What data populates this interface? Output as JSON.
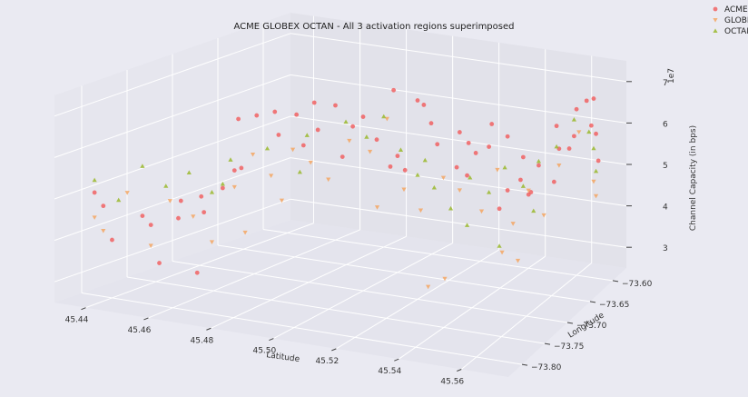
{
  "chart_data": {
    "type": "scatter",
    "title": "ACME GLOBEX OCTAN - All 3 activation regions superimposed",
    "xlabel": "Latitude",
    "ylabel": "Longitude",
    "zlabel": "Channel Capacity (in bps)",
    "z_scale_label": "1e7",
    "x_ticks": [
      "45.44",
      "45.46",
      "45.48",
      "45.50",
      "45.52",
      "45.54",
      "45.56"
    ],
    "y_ticks": [
      "−73.80",
      "−73.75",
      "−73.70",
      "−73.65",
      "−73.60"
    ],
    "z_ticks": [
      "3",
      "4",
      "5",
      "6",
      "7"
    ],
    "xlim": [
      45.43,
      45.575
    ],
    "ylim": [
      -73.83,
      -73.57
    ],
    "zlim": [
      2.5,
      7.5
    ],
    "grid": true,
    "legend_position": "top-right",
    "colors": {
      "ACME": "#f15a5a",
      "GLOBEX": "#f5a35a",
      "OCTAN": "#9ab82e"
    },
    "series": [
      {
        "name": "ACME",
        "marker": "circle",
        "points": [
          [
            45.44,
            -73.82,
            5.2
          ],
          [
            45.44,
            -73.81,
            4.8
          ],
          [
            45.44,
            -73.8,
            3.9
          ],
          [
            45.45,
            -73.8,
            4.6
          ],
          [
            45.45,
            -73.79,
            4.3
          ],
          [
            45.45,
            -73.78,
            3.3
          ],
          [
            45.455,
            -73.775,
            4.4
          ],
          [
            45.46,
            -73.77,
            3.1
          ],
          [
            45.46,
            -73.765,
            4.9
          ],
          [
            45.47,
            -73.76,
            5.6
          ],
          [
            45.47,
            -73.755,
            6.8
          ],
          [
            45.475,
            -73.75,
            6.9
          ],
          [
            45.48,
            -73.745,
            7.0
          ],
          [
            45.48,
            -73.74,
            6.4
          ],
          [
            45.485,
            -73.735,
            6.9
          ],
          [
            45.49,
            -73.73,
            7.2
          ],
          [
            45.49,
            -73.725,
            6.5
          ],
          [
            45.495,
            -73.72,
            7.1
          ],
          [
            45.5,
            -73.715,
            6.6
          ],
          [
            45.5,
            -73.7,
            6.7
          ],
          [
            45.505,
            -73.7,
            6.2
          ],
          [
            45.51,
            -73.695,
            7.4
          ],
          [
            45.52,
            -73.7,
            7.3
          ],
          [
            45.52,
            -73.69,
            7.1
          ],
          [
            45.525,
            -73.69,
            6.2
          ],
          [
            45.53,
            -73.68,
            5.6
          ],
          [
            45.53,
            -73.675,
            6.4
          ],
          [
            45.535,
            -73.67,
            5.9
          ],
          [
            45.54,
            -73.67,
            6.1
          ],
          [
            45.54,
            -73.665,
            6.6
          ],
          [
            45.545,
            -73.66,
            5.0
          ],
          [
            45.55,
            -73.66,
            5.3
          ],
          [
            45.55,
            -73.655,
            5.8
          ],
          [
            45.555,
            -73.65,
            5.6
          ],
          [
            45.56,
            -73.64,
            6.5
          ],
          [
            45.56,
            -73.635,
            5.9
          ],
          [
            45.565,
            -73.63,
            6.2
          ],
          [
            45.565,
            -73.625,
            6.8
          ],
          [
            45.57,
            -73.62,
            6.4
          ],
          [
            45.57,
            -73.615,
            7.0
          ],
          [
            45.57,
            -73.61,
            6.1
          ],
          [
            45.57,
            -73.605,
            5.4
          ],
          [
            45.52,
            -73.72,
            5.8
          ],
          [
            45.515,
            -73.71,
            6.0
          ],
          [
            45.535,
            -73.685,
            5.5
          ],
          [
            45.545,
            -73.675,
            4.7
          ],
          [
            45.555,
            -73.665,
            5.1
          ],
          [
            45.46,
            -73.79,
            5.0
          ],
          [
            45.465,
            -73.78,
            4.7
          ],
          [
            45.47,
            -73.775,
            5.3
          ],
          [
            45.475,
            -73.77,
            5.8
          ],
          [
            45.49,
            -73.745,
            6.3
          ],
          [
            45.5,
            -73.73,
            6.0
          ],
          [
            45.525,
            -73.7,
            6.8
          ],
          [
            45.545,
            -73.66,
            6.3
          ],
          [
            45.56,
            -73.645,
            5.2
          ],
          [
            45.55,
            -73.645,
            4.8
          ],
          [
            45.53,
            -73.66,
            6.0
          ],
          [
            45.51,
            -73.7,
            5.6
          ],
          [
            45.565,
            -73.64,
            6.0
          ],
          [
            45.57,
            -73.63,
            7.1
          ]
        ]
      },
      {
        "name": "GLOBEX",
        "marker": "triangle-down",
        "points": [
          [
            45.44,
            -73.81,
            4.2
          ],
          [
            45.44,
            -73.82,
            4.6
          ],
          [
            45.445,
            -73.8,
            5.1
          ],
          [
            45.45,
            -73.79,
            3.8
          ],
          [
            45.455,
            -73.785,
            4.9
          ],
          [
            45.46,
            -73.775,
            4.5
          ],
          [
            45.465,
            -73.77,
            3.9
          ],
          [
            45.47,
            -73.76,
            5.2
          ],
          [
            45.475,
            -73.755,
            6.0
          ],
          [
            45.48,
            -73.75,
            5.5
          ],
          [
            45.485,
            -73.74,
            6.1
          ],
          [
            45.49,
            -73.735,
            5.8
          ],
          [
            45.5,
            -73.72,
            6.3
          ],
          [
            45.505,
            -73.71,
            6.0
          ],
          [
            45.51,
            -73.705,
            6.8
          ],
          [
            45.515,
            -73.7,
            5.1
          ],
          [
            45.52,
            -73.695,
            4.6
          ],
          [
            45.525,
            -73.68,
            5.3
          ],
          [
            45.53,
            -73.675,
            5.0
          ],
          [
            45.535,
            -73.66,
            4.4
          ],
          [
            45.54,
            -73.655,
            5.4
          ],
          [
            45.545,
            -73.65,
            4.1
          ],
          [
            45.55,
            -73.645,
            4.9
          ],
          [
            45.555,
            -73.64,
            4.3
          ],
          [
            45.56,
            -73.635,
            5.5
          ],
          [
            45.565,
            -73.62,
            6.2
          ],
          [
            45.57,
            -73.615,
            5.0
          ],
          [
            45.57,
            -73.61,
            4.6
          ],
          [
            45.53,
            -73.7,
            3.1
          ],
          [
            45.525,
            -73.705,
            2.9
          ],
          [
            45.545,
            -73.67,
            3.6
          ],
          [
            45.55,
            -73.665,
            3.4
          ],
          [
            45.51,
            -73.72,
            4.8
          ],
          [
            45.495,
            -73.73,
            5.4
          ],
          [
            45.475,
            -73.765,
            4.2
          ],
          [
            45.485,
            -73.755,
            5.0
          ]
        ]
      },
      {
        "name": "OCTAN",
        "marker": "triangle-up",
        "points": [
          [
            45.44,
            -73.82,
            5.5
          ],
          [
            45.445,
            -73.81,
            5.0
          ],
          [
            45.45,
            -73.8,
            5.8
          ],
          [
            45.455,
            -73.79,
            5.3
          ],
          [
            45.46,
            -73.78,
            5.6
          ],
          [
            45.465,
            -73.77,
            5.1
          ],
          [
            45.47,
            -73.765,
            5.9
          ],
          [
            45.48,
            -73.755,
            6.2
          ],
          [
            45.49,
            -73.74,
            6.5
          ],
          [
            45.5,
            -73.725,
            6.8
          ],
          [
            45.505,
            -73.715,
            6.4
          ],
          [
            45.51,
            -73.71,
            6.9
          ],
          [
            45.515,
            -73.705,
            6.1
          ],
          [
            45.52,
            -73.7,
            5.5
          ],
          [
            45.525,
            -73.695,
            5.2
          ],
          [
            45.53,
            -73.69,
            4.7
          ],
          [
            45.535,
            -73.68,
            5.4
          ],
          [
            45.54,
            -73.67,
            5.0
          ],
          [
            45.545,
            -73.665,
            5.6
          ],
          [
            45.55,
            -73.655,
            5.1
          ],
          [
            45.555,
            -73.65,
            5.7
          ],
          [
            45.56,
            -73.64,
            6.0
          ],
          [
            45.565,
            -73.63,
            6.6
          ],
          [
            45.57,
            -73.625,
            6.3
          ],
          [
            45.57,
            -73.615,
            5.8
          ],
          [
            45.57,
            -73.61,
            5.2
          ],
          [
            45.535,
            -73.685,
            4.3
          ],
          [
            45.545,
            -73.675,
            3.8
          ],
          [
            45.555,
            -73.66,
            4.6
          ],
          [
            45.525,
            -73.71,
            6.0
          ],
          [
            45.49,
            -73.75,
            5.7
          ],
          [
            45.47,
            -73.775,
            5.4
          ]
        ]
      }
    ]
  }
}
